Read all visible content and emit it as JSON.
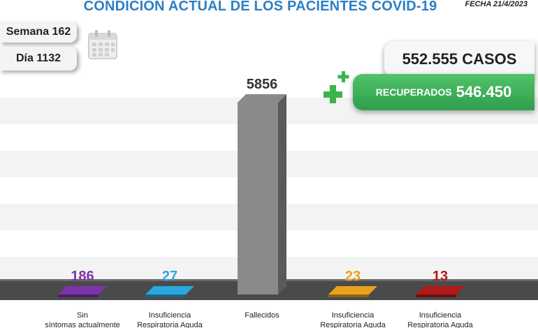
{
  "header": {
    "title": "CONDICIÓN ACTUAL DE LOS PACIENTES COVID-19",
    "fecha": "FECHA 21/4/2023"
  },
  "semana": "Semana 162",
  "dia": "Día 1132",
  "casos": "552.555 CASOS",
  "recuperados": {
    "label": "RECUPERADOS",
    "value": "546.450"
  },
  "chart_data": {
    "type": "bar",
    "title": "CONDICIÓN ACTUAL DE LOS PACIENTES COVID-19",
    "categories": [
      "Sin síntomas actualmente",
      "Insuficiencia Respiratoria Aguda",
      "Fallecidos",
      "Insuficiencia Respiratoria Aguda",
      "Insuficiencia Respiratoria Aguda"
    ],
    "values": [
      186,
      27,
      5856,
      23,
      13
    ],
    "colors": [
      "#7b35a8",
      "#2ba7df",
      "#8a8a8a",
      "#e8a21e",
      "#b01a1a"
    ],
    "grid": true,
    "legend": "none"
  },
  "icons": {
    "calendar": "calendar-icon",
    "plus": "plus-icon"
  }
}
